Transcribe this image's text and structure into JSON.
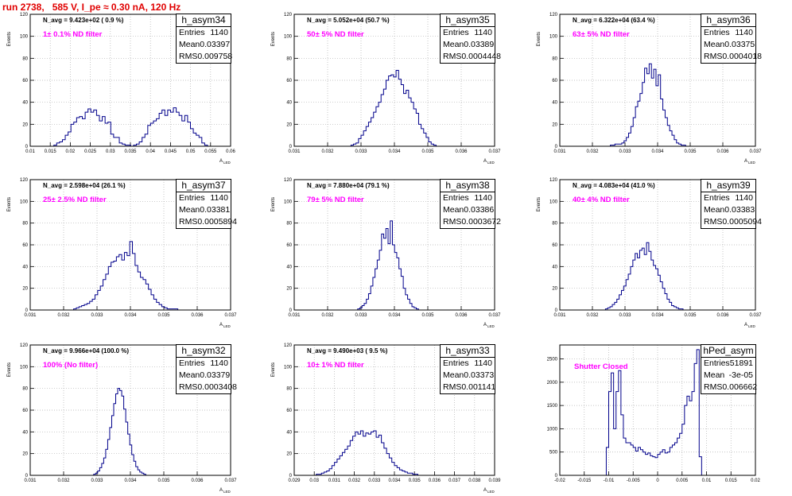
{
  "run_title": "run 2738,   585 V, I_pe ≈ 0.30 nA, 120 Hz",
  "stat_labels": {
    "entries": "Entries",
    "mean": "Mean",
    "rms": "RMS"
  },
  "colors": {
    "title": "#e00000",
    "annotation": "#ff00ff",
    "histogram": "#00008b",
    "grid": "#b0b0b0"
  },
  "chart_data": [
    {
      "type": "bar",
      "name": "h_asym34",
      "navg": "N_avg = 9.423e+02 ( 0.9 %)",
      "filter": "1± 0.1% ND filter",
      "entries": "1140",
      "mean": "0.03397",
      "rms": "0.009758",
      "xlabel": "A",
      "xlabel_sub": "LED",
      "ylabel": "Events",
      "xlim": [
        0.01,
        0.06
      ],
      "ylim": [
        0,
        120
      ],
      "x_ticks": [
        "0.01",
        "0.015",
        "0.02",
        "0.025",
        "0.03",
        "0.035",
        "0.04",
        "0.045",
        "0.05",
        "0.055",
        "0.06"
      ],
      "y_ticks": [
        "0",
        "20",
        "40",
        "60",
        "80",
        "100",
        "120"
      ],
      "bin_start": 0.0159,
      "bin_width": 0.00071,
      "values": [
        1,
        3,
        4,
        6,
        10,
        13,
        20,
        22,
        26,
        27,
        25,
        31,
        34,
        31,
        33,
        28,
        23,
        27,
        21,
        22,
        11,
        8,
        8,
        3,
        2,
        1,
        1,
        0,
        1,
        2,
        4,
        8,
        11,
        19,
        21,
        23,
        25,
        30,
        33,
        28,
        33,
        31,
        35,
        31,
        28,
        23,
        28,
        22,
        16,
        12,
        10,
        8,
        3,
        1
      ]
    },
    {
      "type": "bar",
      "name": "h_asym35",
      "navg": "N_avg = 5.052e+04 (50.7 %)",
      "filter": "50± 5% ND filter",
      "entries": "1140",
      "mean": "0.03389",
      "rms": "0.0004448",
      "xlabel": "A",
      "xlabel_sub": "LED",
      "ylabel": "Events",
      "xlim": [
        0.031,
        0.037
      ],
      "ylim": [
        0,
        120
      ],
      "x_ticks": [
        "0.031",
        "0.032",
        "0.033",
        "0.034",
        "0.035",
        "0.036",
        "0.037"
      ],
      "y_ticks": [
        "0",
        "20",
        "40",
        "60",
        "80",
        "100",
        "120"
      ],
      "bin_start": 0.0327,
      "bin_width": 7.5e-05,
      "values": [
        1,
        2,
        3,
        7,
        10,
        14,
        18,
        22,
        26,
        31,
        36,
        40,
        47,
        52,
        60,
        64,
        65,
        63,
        69,
        61,
        56,
        48,
        51,
        44,
        40,
        34,
        30,
        20,
        16,
        12,
        8,
        4,
        2,
        1
      ]
    },
    {
      "type": "bar",
      "name": "h_asym36",
      "navg": "N_avg = 6.322e+04 (63.4 %)",
      "filter": "63± 5% ND filter",
      "entries": "1140",
      "mean": "0.03375",
      "rms": "0.0004018",
      "xlabel": "A",
      "xlabel_sub": "LED",
      "ylabel": "Events",
      "xlim": [
        0.031,
        0.037
      ],
      "ylim": [
        0,
        120
      ],
      "x_ticks": [
        "0.031",
        "0.032",
        "0.033",
        "0.034",
        "0.035",
        "0.036",
        "0.037"
      ],
      "y_ticks": [
        "0",
        "20",
        "40",
        "60",
        "80",
        "100",
        "120"
      ],
      "bin_start": 0.03255,
      "bin_width": 7e-05,
      "values": [
        1,
        1,
        2,
        2,
        2,
        3,
        5,
        8,
        12,
        18,
        26,
        36,
        41,
        48,
        58,
        71,
        66,
        75,
        62,
        70,
        55,
        65,
        43,
        33,
        26,
        19,
        14,
        10,
        6,
        3,
        2,
        1,
        1
      ]
    },
    {
      "type": "bar",
      "name": "h_asym37",
      "navg": "N_avg = 2.598e+04 (26.1 %)",
      "filter": "25± 2.5% ND filter",
      "entries": "1140",
      "mean": "0.03381",
      "rms": "0.0005894",
      "xlabel": "A",
      "xlabel_sub": "LED",
      "ylabel": "Events",
      "xlim": [
        0.031,
        0.037
      ],
      "ylim": [
        0,
        120
      ],
      "x_ticks": [
        "0.031",
        "0.032",
        "0.033",
        "0.034",
        "0.035",
        "0.036",
        "0.037"
      ],
      "y_ticks": [
        "0",
        "20",
        "40",
        "60",
        "80",
        "100",
        "120"
      ],
      "bin_start": 0.0323,
      "bin_width": 8e-05,
      "values": [
        1,
        2,
        3,
        4,
        5,
        6,
        8,
        10,
        14,
        18,
        22,
        28,
        33,
        40,
        44,
        45,
        49,
        51,
        46,
        53,
        50,
        63,
        52,
        41,
        35,
        30,
        28,
        24,
        19,
        14,
        10,
        7,
        5,
        3,
        2,
        1,
        1,
        1,
        1
      ]
    },
    {
      "type": "bar",
      "name": "h_asym38",
      "navg": "N_avg = 7.880e+04 (79.1 %)",
      "filter": "79± 5% ND filter",
      "entries": "1140",
      "mean": "0.03386",
      "rms": "0.0003672",
      "xlabel": "A",
      "xlabel_sub": "LED",
      "ylabel": "Events",
      "xlim": [
        0.031,
        0.037
      ],
      "ylim": [
        0,
        120
      ],
      "x_ticks": [
        "0.031",
        "0.032",
        "0.033",
        "0.034",
        "0.035",
        "0.036",
        "0.037"
      ],
      "y_ticks": [
        "0",
        "20",
        "40",
        "60",
        "80",
        "100",
        "120"
      ],
      "bin_start": 0.0329,
      "bin_width": 6.5e-05,
      "values": [
        1,
        2,
        4,
        6,
        10,
        15,
        22,
        30,
        38,
        46,
        55,
        70,
        66,
        75,
        61,
        82,
        60,
        53,
        48,
        38,
        31,
        20,
        14,
        10,
        6,
        3,
        2,
        1
      ]
    },
    {
      "type": "bar",
      "name": "h_asym39",
      "navg": "N_avg = 4.083e+04 (41.0 %)",
      "filter": "40± 4% ND filter",
      "entries": "1140",
      "mean": "0.03383",
      "rms": "0.0005094",
      "xlabel": "A",
      "xlabel_sub": "LED",
      "ylabel": "Events",
      "xlim": [
        0.031,
        0.037
      ],
      "ylim": [
        0,
        120
      ],
      "x_ticks": [
        "0.031",
        "0.032",
        "0.033",
        "0.034",
        "0.035",
        "0.036",
        "0.037"
      ],
      "y_ticks": [
        "0",
        "20",
        "40",
        "60",
        "80",
        "100",
        "120"
      ],
      "bin_start": 0.0324,
      "bin_width": 7e-05,
      "values": [
        1,
        2,
        3,
        5,
        7,
        10,
        14,
        18,
        22,
        28,
        33,
        40,
        46,
        52,
        48,
        55,
        57,
        51,
        62,
        54,
        46,
        41,
        38,
        32,
        26,
        20,
        15,
        10,
        7,
        4,
        3,
        2,
        1,
        1
      ]
    },
    {
      "type": "bar",
      "name": "h_asym32",
      "navg": "N_avg = 9.966e+04 (100.0 %)",
      "filter": "100% (No filter)",
      "entries": "1140",
      "mean": "0.03379",
      "rms": "0.0003408",
      "xlabel": "A",
      "xlabel_sub": "LED",
      "ylabel": "Events",
      "xlim": [
        0.031,
        0.037
      ],
      "ylim": [
        0,
        120
      ],
      "x_ticks": [
        "0.031",
        "0.032",
        "0.033",
        "0.034",
        "0.035",
        "0.036",
        "0.037"
      ],
      "y_ticks": [
        "0",
        "20",
        "40",
        "60",
        "80",
        "100",
        "120"
      ],
      "bin_start": 0.0329,
      "bin_width": 6e-05,
      "values": [
        1,
        2,
        4,
        7,
        11,
        16,
        24,
        33,
        44,
        55,
        66,
        75,
        80,
        78,
        73,
        61,
        49,
        38,
        28,
        19,
        13,
        8,
        5,
        3,
        2,
        1
      ]
    },
    {
      "type": "bar",
      "name": "h_asym33",
      "navg": "N_avg = 9.490e+03 ( 9.5 %)",
      "filter": "10± 1% ND filter",
      "entries": "1140",
      "mean": "0.03373",
      "rms": "0.001141",
      "xlabel": "A",
      "xlabel_sub": "LED",
      "ylabel": "Events",
      "xlim": [
        0.029,
        0.039
      ],
      "ylim": [
        0,
        120
      ],
      "x_ticks": [
        "0.029",
        "0.03",
        "0.031",
        "0.032",
        "0.033",
        "0.034",
        "0.035",
        "0.036",
        "0.037",
        "0.038",
        "0.039"
      ],
      "y_ticks": [
        "0",
        "20",
        "40",
        "60",
        "80",
        "100",
        "120"
      ],
      "bin_start": 0.0301,
      "bin_width": 0.00013,
      "values": [
        1,
        1,
        2,
        3,
        4,
        6,
        9,
        12,
        15,
        18,
        21,
        24,
        27,
        32,
        36,
        40,
        38,
        41,
        36,
        39,
        38,
        40,
        41,
        35,
        37,
        30,
        25,
        20,
        16,
        12,
        9,
        7,
        5,
        4,
        3,
        2,
        2,
        1,
        1
      ]
    },
    {
      "type": "bar",
      "name": "hPed_asym",
      "navg": "",
      "filter": "Shutter Closed",
      "entries": "51891",
      "mean": "-3e-05",
      "rms": "0.006662",
      "xlabel": "",
      "xlabel_sub": "",
      "ylabel": "",
      "xlim": [
        -0.02,
        0.02
      ],
      "ylim": [
        0,
        2800
      ],
      "x_ticks": [
        "-0.02",
        "-0.015",
        "-0.01",
        "-0.005",
        "0",
        "0.005",
        "0.01",
        "0.015",
        "0.02"
      ],
      "y_ticks": [
        "0",
        "500",
        "1000",
        "1500",
        "2000",
        "2500"
      ],
      "bin_start": -0.0105,
      "bin_width": 0.0005,
      "values": [
        600,
        1800,
        2200,
        1000,
        1800,
        2250,
        1300,
        800,
        700,
        700,
        650,
        600,
        520,
        600,
        550,
        500,
        450,
        480,
        420,
        400,
        380,
        450,
        500,
        550,
        480,
        500,
        600,
        650,
        700,
        800,
        900,
        1100,
        1500,
        1700,
        1600,
        1800,
        2400,
        2700,
        400
      ]
    }
  ]
}
